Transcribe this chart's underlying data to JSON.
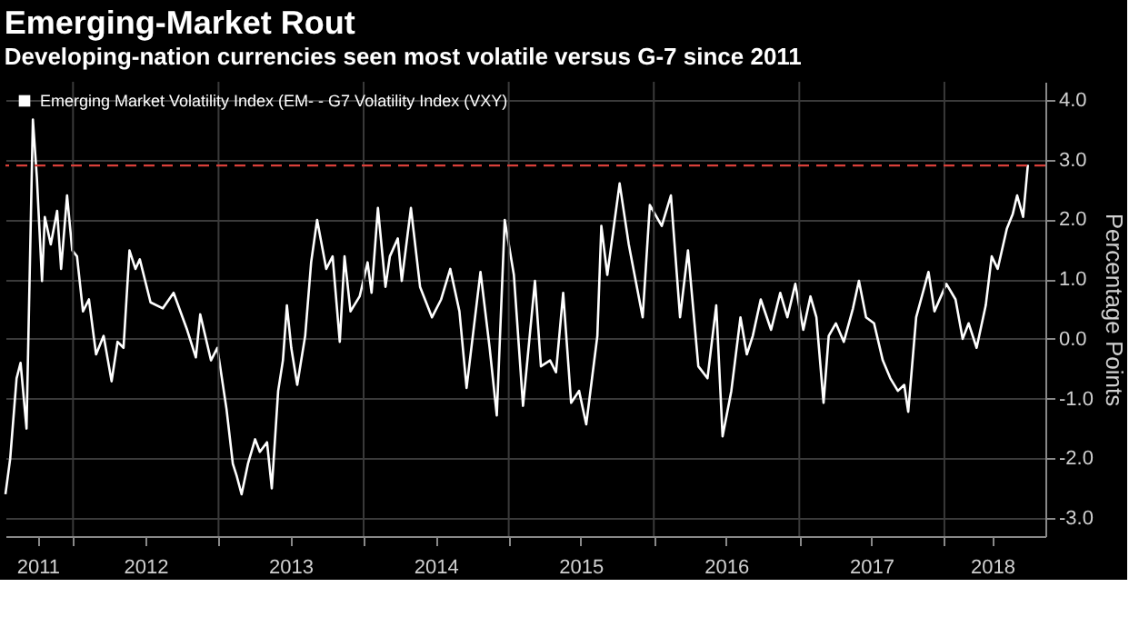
{
  "chart_data": {
    "type": "line",
    "title": "Emerging-Market Rout",
    "subtitle": "Developing-nation currencies seen most volatile versus G-7 since 2011",
    "ylabel": "Percentage Points",
    "x": [
      "2011-07-15",
      "2011-07-27",
      "2011-08-12",
      "2011-08-22",
      "2011-09-06",
      "2011-09-22",
      "2011-10-02",
      "2011-10-15",
      "2011-10-22",
      "2011-11-06",
      "2011-11-22",
      "2011-12-02",
      "2011-12-17",
      "2011-12-30",
      "2012-01-11",
      "2012-01-26",
      "2012-02-10",
      "2012-02-28",
      "2012-03-18",
      "2012-04-07",
      "2012-04-22",
      "2012-05-07",
      "2012-05-22",
      "2012-06-06",
      "2012-06-17",
      "2012-07-14",
      "2012-08-14",
      "2012-09-10",
      "2012-10-14",
      "2012-11-05",
      "2012-11-16",
      "2012-12-13",
      "2012-12-29",
      "2013-01-21",
      "2013-02-06",
      "2013-02-16",
      "2013-02-28",
      "2013-03-16",
      "2013-04-03",
      "2013-04-15",
      "2013-05-03",
      "2013-05-15",
      "2013-05-31",
      "2013-06-12",
      "2013-06-22",
      "2013-07-03",
      "2013-07-18",
      "2013-08-07",
      "2013-08-22",
      "2013-09-06",
      "2013-09-29",
      "2013-10-15",
      "2013-11-02",
      "2013-11-14",
      "2013-11-29",
      "2013-12-22",
      "2014-01-11",
      "2014-01-21",
      "2014-02-06",
      "2014-02-25",
      "2014-03-08",
      "2014-03-28",
      "2014-04-07",
      "2014-04-30",
      "2014-05-23",
      "2014-06-22",
      "2014-07-15",
      "2014-08-07",
      "2014-08-30",
      "2014-09-17",
      "2014-10-22",
      "2014-11-14",
      "2014-12-02",
      "2014-12-22",
      "2015-01-14",
      "2015-02-06",
      "2015-03-08",
      "2015-03-23",
      "2015-04-15",
      "2015-04-30",
      "2015-05-18",
      "2015-06-07",
      "2015-06-27",
      "2015-07-15",
      "2015-08-12",
      "2015-08-22",
      "2015-09-06",
      "2015-10-07",
      "2015-10-30",
      "2015-12-04",
      "2015-12-22",
      "2016-01-21",
      "2016-02-13",
      "2016-03-07",
      "2016-03-27",
      "2016-04-22",
      "2016-05-15",
      "2016-06-06",
      "2016-06-22",
      "2016-07-14",
      "2016-08-06",
      "2016-08-22",
      "2016-09-06",
      "2016-09-26",
      "2016-10-22",
      "2016-11-14",
      "2016-12-02",
      "2016-12-22",
      "2017-01-11",
      "2017-01-29",
      "2017-02-13",
      "2017-03-03",
      "2017-03-16",
      "2017-04-03",
      "2017-04-23",
      "2017-05-16",
      "2017-05-31",
      "2017-06-18",
      "2017-07-08",
      "2017-07-30",
      "2017-08-18",
      "2017-09-06",
      "2017-09-22",
      "2017-10-02",
      "2017-10-22",
      "2017-11-22",
      "2017-12-07",
      "2018-01-06",
      "2018-01-29",
      "2018-02-16",
      "2018-03-03",
      "2018-03-23",
      "2018-04-15",
      "2018-04-30",
      "2018-05-15",
      "2018-06-07",
      "2018-06-22",
      "2018-07-03",
      "2018-07-18",
      "2018-07-30"
    ],
    "series": [
      {
        "name": "Emerging Market Volatility Index (EM- - G7 Volatility Index (VXY)",
        "color": "#ffffff",
        "values": [
          -2.6,
          -2.0,
          -0.66,
          -0.4,
          -1.5,
          3.67,
          2.7,
          0.97,
          2.04,
          1.58,
          2.14,
          1.17,
          2.4,
          1.48,
          1.38,
          0.46,
          0.66,
          -0.26,
          0.05,
          -0.71,
          -0.05,
          -0.15,
          1.48,
          1.17,
          1.33,
          0.61,
          0.51,
          0.77,
          0.15,
          -0.31,
          0.41,
          -0.36,
          -0.15,
          -1.17,
          -2.09,
          -2.3,
          -2.6,
          -2.09,
          -1.68,
          -1.89,
          -1.73,
          -2.5,
          -0.87,
          -0.36,
          0.56,
          -0.15,
          -0.77,
          0.05,
          1.28,
          1.99,
          1.17,
          1.38,
          -0.05,
          1.38,
          0.46,
          0.71,
          1.28,
          0.77,
          2.19,
          0.87,
          1.38,
          1.68,
          0.97,
          2.19,
          0.87,
          0.36,
          0.66,
          1.17,
          0.46,
          -0.82,
          1.12,
          -0.15,
          -1.28,
          1.99,
          1.07,
          -1.12,
          0.97,
          -0.46,
          -0.36,
          -0.56,
          0.77,
          -1.07,
          -0.87,
          -1.43,
          0.05,
          1.89,
          1.07,
          2.6,
          1.58,
          0.36,
          2.24,
          1.89,
          2.4,
          0.36,
          1.48,
          -0.46,
          -0.66,
          0.56,
          -1.63,
          -0.87,
          0.36,
          -0.26,
          0.05,
          0.66,
          0.15,
          0.77,
          0.36,
          0.92,
          0.15,
          0.71,
          0.36,
          -1.07,
          0.05,
          0.26,
          -0.05,
          0.51,
          0.97,
          0.36,
          0.26,
          -0.36,
          -0.66,
          -0.87,
          -0.77,
          -1.22,
          0.36,
          1.12,
          0.46,
          0.92,
          0.66,
          0.0,
          0.26,
          -0.15,
          0.56,
          1.38,
          1.17,
          1.84,
          2.09,
          2.4,
          2.04,
          2.91
        ]
      }
    ],
    "xlim": [
      "2011-07-15",
      "2018-09-12"
    ],
    "xticks": [
      {
        "value": "2011-10-04",
        "label": "2011"
      },
      {
        "value": "2012-01-01",
        "label": null
      },
      {
        "value": "2012-07-01",
        "label": "2012"
      },
      {
        "value": "2013-01-01",
        "label": null
      },
      {
        "value": "2013-07-01",
        "label": "2013"
      },
      {
        "value": "2014-01-01",
        "label": null
      },
      {
        "value": "2014-07-01",
        "label": "2014"
      },
      {
        "value": "2015-01-01",
        "label": null
      },
      {
        "value": "2015-07-01",
        "label": "2015"
      },
      {
        "value": "2016-01-01",
        "label": null
      },
      {
        "value": "2016-07-01",
        "label": "2016"
      },
      {
        "value": "2017-01-01",
        "label": null
      },
      {
        "value": "2017-07-01",
        "label": "2017"
      },
      {
        "value": "2018-01-01",
        "label": null
      },
      {
        "value": "2018-05-01",
        "label": "2018"
      }
    ],
    "ylim": [
      -3.3,
      4.3
    ],
    "yticks": [
      {
        "value": 4,
        "label": "4.0"
      },
      {
        "value": 3,
        "label": "3.0"
      },
      {
        "value": 2,
        "label": "2.0"
      },
      {
        "value": 1,
        "label": "1.0"
      },
      {
        "value": 0,
        "label": "0.0"
      },
      {
        "value": -1,
        "label": "-1.0"
      },
      {
        "value": -2,
        "label": "-2.0"
      },
      {
        "value": -3,
        "label": "-3.0"
      }
    ],
    "ref_lines": [
      {
        "axis": "y",
        "value": 2.9,
        "color": "#d9403a",
        "line_style": "dashed"
      }
    ],
    "grid": true,
    "legend": "top left",
    "line_style": "solid",
    "marker": "none"
  }
}
